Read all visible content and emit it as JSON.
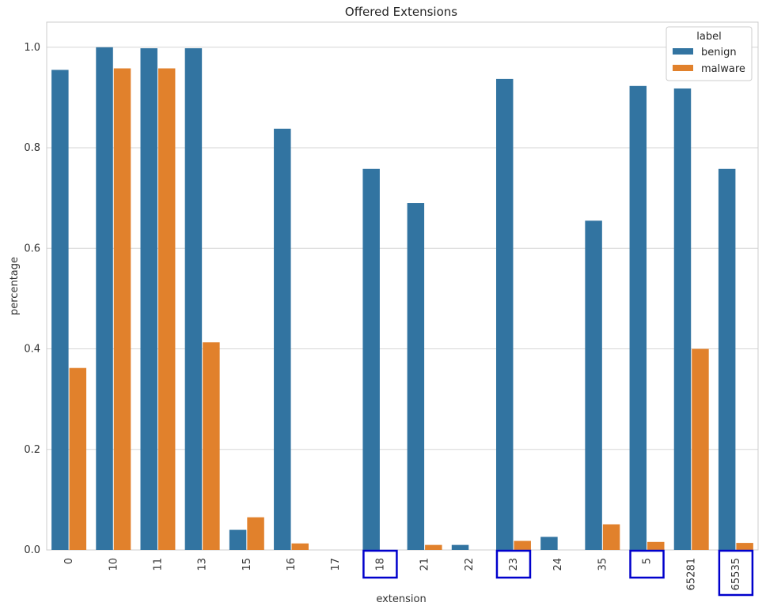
{
  "chart_data": {
    "type": "bar",
    "title": "Offered Extensions",
    "xlabel": "extension",
    "ylabel": "percentage",
    "ylim": [
      0,
      1.05
    ],
    "yticks": [
      "0.0",
      "0.2",
      "0.4",
      "0.6",
      "0.8",
      "1.0"
    ],
    "grid": "horizontal",
    "legend": {
      "title": "label",
      "placement": "top-right"
    },
    "categories": [
      "0",
      "10",
      "11",
      "13",
      "15",
      "16",
      "17",
      "18",
      "21",
      "22",
      "23",
      "24",
      "35",
      "5",
      "65281",
      "65535"
    ],
    "highlighted_categories": [
      "18",
      "23",
      "5",
      "65535"
    ],
    "series": [
      {
        "name": "benign",
        "color": "#3274a1",
        "values": [
          0.955,
          1.0,
          0.998,
          0.998,
          0.04,
          0.838,
          0.0,
          0.758,
          0.69,
          0.01,
          0.937,
          0.026,
          0.655,
          0.923,
          0.918,
          0.758
        ]
      },
      {
        "name": "malware",
        "color": "#e1812c",
        "values": [
          0.362,
          0.958,
          0.958,
          0.413,
          0.065,
          0.013,
          0.0,
          0.0,
          0.01,
          0.0,
          0.018,
          0.0,
          0.051,
          0.016,
          0.4,
          0.014
        ]
      }
    ],
    "colors": {
      "highlight_box": "#0000cc",
      "grid": "#d6d6d6",
      "frame": "#cccccc"
    }
  }
}
